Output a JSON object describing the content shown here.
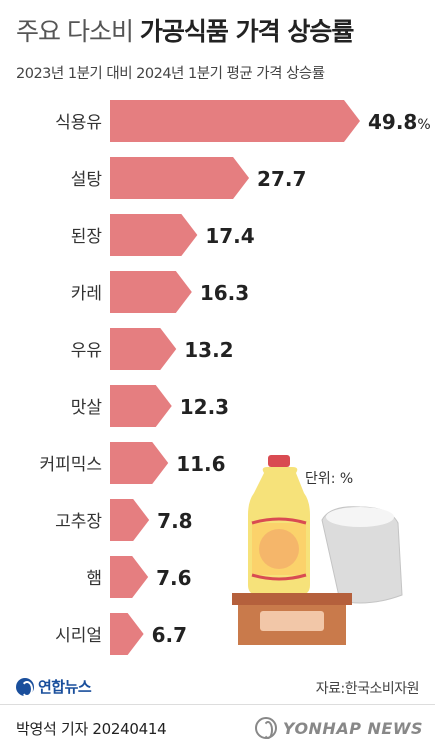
{
  "header": {
    "title_light": "주요 다소비",
    "title_bold": "가공식품 가격 상승률",
    "subtitle": "2023년 1분기 대비 2024년 1분기 평균 가격 상승률"
  },
  "unit_label": "단위: %",
  "source": "자료:한국소비자원",
  "logo_text": "연합뉴스",
  "byline": "박영석 기자  20240414",
  "agency": "YONHAP NEWS",
  "colors": {
    "bar": "#e57e80",
    "bar_text": "#222222"
  },
  "chart_data": {
    "type": "bar",
    "orientation": "horizontal",
    "categories": [
      "식용유",
      "설탕",
      "된장",
      "카레",
      "우유",
      "맛살",
      "커피믹스",
      "고추장",
      "햄",
      "시리얼"
    ],
    "values": [
      49.8,
      27.7,
      17.4,
      16.3,
      13.2,
      12.3,
      11.6,
      7.8,
      7.6,
      6.7
    ],
    "value_labels": [
      "49.8",
      "27.7",
      "17.4",
      "16.3",
      "13.2",
      "12.3",
      "11.6",
      "7.8",
      "7.6",
      "6.7"
    ],
    "first_value_suffix": "%",
    "xlim": [
      0,
      49.8
    ]
  }
}
